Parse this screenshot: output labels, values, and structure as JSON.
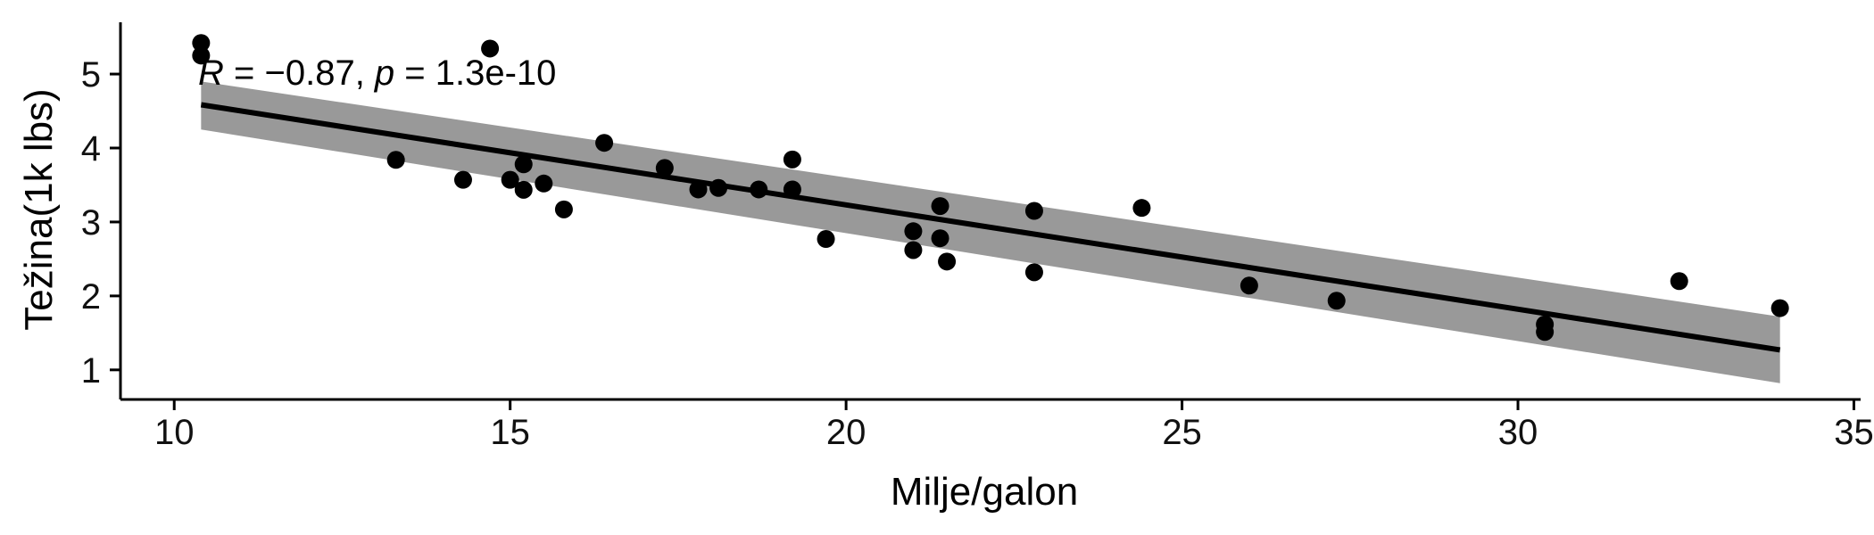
{
  "chart_data": {
    "type": "scatter",
    "xlabel": "Milje/galon",
    "ylabel": "Težina(1k lbs)",
    "xlim": [
      9.2,
      35.1
    ],
    "ylim": [
      0.6,
      5.7
    ],
    "x_ticks": [
      10,
      15,
      20,
      25,
      30,
      35
    ],
    "y_ticks": [
      1,
      2,
      3,
      4,
      5
    ],
    "grid": false,
    "annotation": {
      "r_symbol": "R",
      "r_text": " = −0.87, ",
      "p_symbol": "p",
      "p_text": " = 1.3e-10"
    },
    "points": [
      {
        "x": 10.4,
        "y": 5.42
      },
      {
        "x": 10.4,
        "y": 5.25
      },
      {
        "x": 14.7,
        "y": 5.345
      },
      {
        "x": 13.3,
        "y": 3.84
      },
      {
        "x": 14.3,
        "y": 3.57
      },
      {
        "x": 15.0,
        "y": 3.57
      },
      {
        "x": 15.2,
        "y": 3.78
      },
      {
        "x": 15.2,
        "y": 3.435
      },
      {
        "x": 15.5,
        "y": 3.52
      },
      {
        "x": 15.8,
        "y": 3.17
      },
      {
        "x": 16.4,
        "y": 4.07
      },
      {
        "x": 17.3,
        "y": 3.73
      },
      {
        "x": 17.8,
        "y": 3.44
      },
      {
        "x": 18.1,
        "y": 3.46
      },
      {
        "x": 18.7,
        "y": 3.44
      },
      {
        "x": 19.2,
        "y": 3.845
      },
      {
        "x": 19.2,
        "y": 3.44
      },
      {
        "x": 19.7,
        "y": 2.77
      },
      {
        "x": 21.0,
        "y": 2.875
      },
      {
        "x": 21.0,
        "y": 2.62
      },
      {
        "x": 21.4,
        "y": 3.215
      },
      {
        "x": 21.4,
        "y": 2.78
      },
      {
        "x": 21.5,
        "y": 2.465
      },
      {
        "x": 22.8,
        "y": 3.15
      },
      {
        "x": 22.8,
        "y": 2.32
      },
      {
        "x": 24.4,
        "y": 3.19
      },
      {
        "x": 26.0,
        "y": 2.14
      },
      {
        "x": 27.3,
        "y": 1.935
      },
      {
        "x": 30.4,
        "y": 1.615
      },
      {
        "x": 30.4,
        "y": 1.513
      },
      {
        "x": 32.4,
        "y": 2.2
      },
      {
        "x": 33.9,
        "y": 1.835
      }
    ],
    "regression": {
      "x": [
        10.4,
        33.9
      ],
      "y": [
        4.585,
        1.27
      ]
    },
    "confidence_band": {
      "x": [
        10.4,
        33.9
      ],
      "upper": [
        4.9,
        1.72
      ],
      "lower": [
        4.25,
        0.82
      ]
    },
    "colors": {
      "points": "#000000",
      "line": "#000000",
      "band": "#999999",
      "axis": "#000000"
    }
  }
}
